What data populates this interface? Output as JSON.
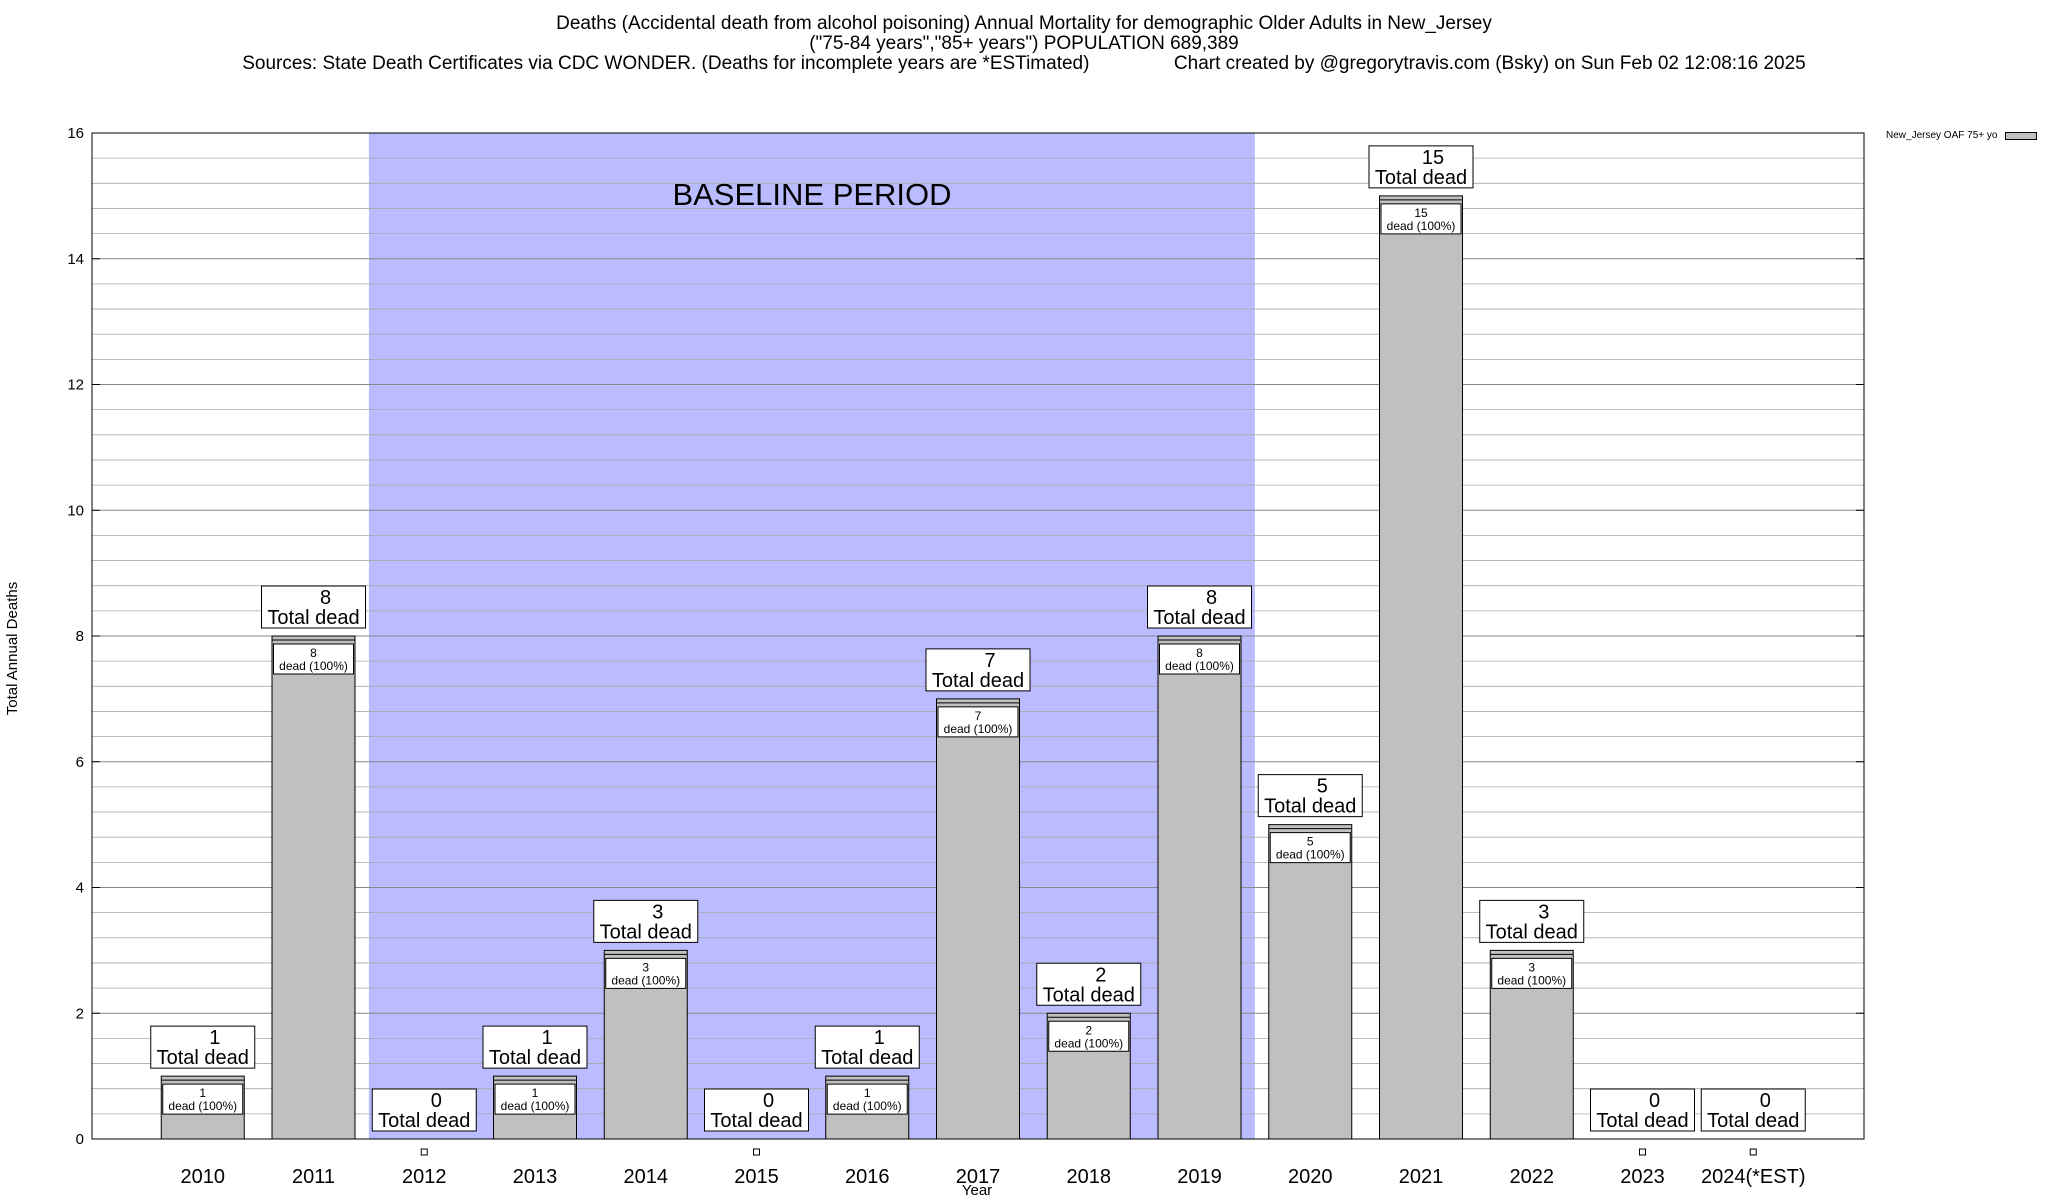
{
  "header": {
    "title": "Deaths (Accidental death from alcohol poisoning) Annual Mortality for demographic Older Adults in New_Jersey",
    "subtitle": "(\"75-84 years\",\"85+ years\") POPULATION 689,389",
    "sources": "Sources: State Death Certificates via CDC WONDER. (Deaths for incomplete years are *ESTimated)",
    "credit": "Chart created by @gregorytravis.com (Bsky) on Sun Feb 02 12:08:16 2025"
  },
  "colors": {
    "bar": "#c0c0c0",
    "baseline": "#bbbbff"
  },
  "chart_data": {
    "type": "bar",
    "title": "Deaths (Accidental death from alcohol poisoning) Annual Mortality for demographic Older Adults in New_Jersey",
    "xlabel": "Year",
    "ylabel": "Total Annual Deaths",
    "ylim": [
      0,
      16
    ],
    "yticks": [
      0,
      2,
      4,
      6,
      8,
      10,
      12,
      14,
      16
    ],
    "grid": true,
    "legend_position": "top-right",
    "categories": [
      "2010",
      "2011",
      "2012",
      "2013",
      "2014",
      "2015",
      "2016",
      "2017",
      "2018",
      "2019",
      "2020",
      "2021",
      "2022",
      "2023",
      "2024(*EST)"
    ],
    "series": [
      {
        "name": "New_Jersey OAF 75+ yo",
        "values": [
          1,
          8,
          0,
          1,
          3,
          0,
          1,
          7,
          2,
          8,
          5,
          15,
          3,
          0,
          0
        ]
      }
    ],
    "total_label": "Total dead",
    "inner_label": "dead (100%)",
    "baseline_period": {
      "label": "BASELINE PERIOD",
      "start": "2012",
      "end": "2019"
    }
  }
}
